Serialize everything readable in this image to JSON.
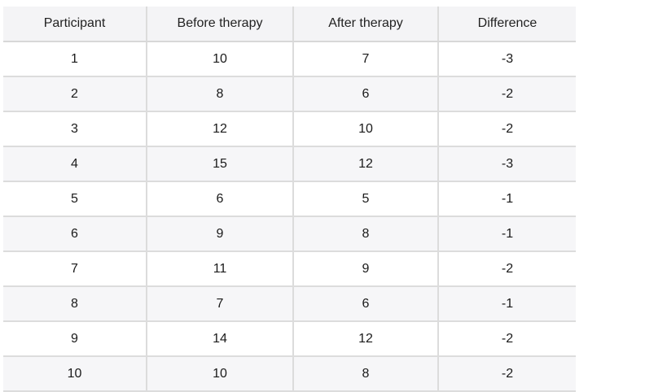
{
  "table": {
    "headers": [
      "Participant",
      "Before therapy",
      "After therapy",
      "Difference"
    ],
    "rows": [
      [
        "1",
        "10",
        "7",
        "-3"
      ],
      [
        "2",
        "8",
        "6",
        "-2"
      ],
      [
        "3",
        "12",
        "10",
        "-2"
      ],
      [
        "4",
        "15",
        "12",
        "-3"
      ],
      [
        "5",
        "6",
        "5",
        "-1"
      ],
      [
        "6",
        "9",
        "8",
        "-1"
      ],
      [
        "7",
        "11",
        "9",
        "-2"
      ],
      [
        "8",
        "7",
        "6",
        "-1"
      ],
      [
        "9",
        "14",
        "12",
        "-2"
      ],
      [
        "10",
        "10",
        "8",
        "-2"
      ]
    ]
  }
}
